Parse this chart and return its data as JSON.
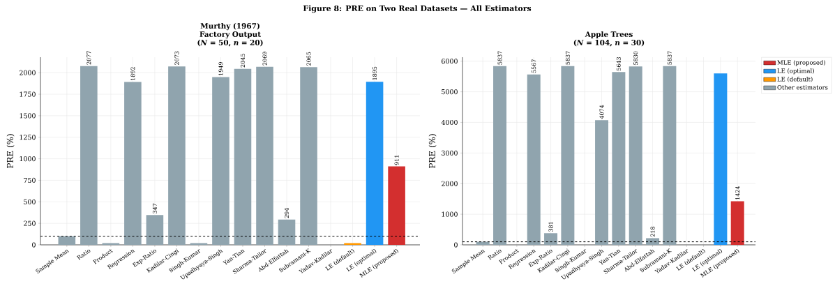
{
  "chart_data": [
    {
      "type": "bar",
      "title": "Murthy (1967) Factory Output",
      "subtitle": "(*N* = 50, *n* = 20)",
      "ylabel": "PRE (%)",
      "annotations": [
        "Figure 8: PRE on Two Real Datasets — All Estimators"
      ],
      "categories": [
        "Sample Mean",
        "Ratio",
        "Product",
        "Regression",
        "Exp-Ratio",
        "Kadilar-Cingi",
        "Singh-Kumar",
        "Upadhyaya-Singh",
        "Yan-Tian",
        "Sharma-Tailor",
        "Abd-Elfattah",
        "Subramani-K",
        "Yadav-Kadilar",
        "LE (default)",
        "LE (optimal)",
        "MLE (proposed)"
      ],
      "series": [
        {
          "color": "#d32f2f",
          "values": [
            null,
            null,
            null,
            null,
            null,
            null,
            null,
            null,
            null,
            null,
            null,
            null,
            null,
            null,
            null,
            911
          ],
          "value_labels": [
            null,
            null,
            null,
            null,
            null,
            null,
            null,
            null,
            null,
            null,
            null,
            null,
            null,
            null,
            null,
            "911"
          ]
        },
        {
          "color": "#2196f3",
          "values": [
            null,
            null,
            null,
            null,
            null,
            null,
            null,
            null,
            null,
            null,
            null,
            null,
            null,
            null,
            1895,
            null
          ],
          "value_labels": [
            null,
            null,
            null,
            null,
            null,
            null,
            null,
            null,
            null,
            null,
            null,
            null,
            null,
            null,
            "1895",
            null
          ]
        },
        {
          "color": "#ff9800",
          "values": [
            null,
            null,
            null,
            null,
            null,
            null,
            null,
            null,
            null,
            null,
            null,
            null,
            null,
            20,
            null,
            null
          ]
        },
        {
          "color": "#90a4ae",
          "values": [
            100,
            2077,
            20,
            1892,
            347,
            2073,
            20,
            1949,
            2045,
            2069,
            294,
            2065,
            null,
            null,
            null,
            null
          ],
          "value_labels": [
            null,
            "2077",
            null,
            "1892",
            "347",
            "2073",
            null,
            "1949",
            "2045",
            "2069",
            "294",
            "2065",
            null,
            null,
            null,
            null
          ]
        }
      ],
      "ylim": [
        0,
        2180
      ],
      "yticks": [
        0,
        250,
        500,
        750,
        1000,
        1250,
        1500,
        1750,
        2000
      ],
      "grid": true,
      "ref_lines": [
        {
          "axis": "y",
          "value": 100,
          "color": "#000000",
          "line_style": "dashed"
        }
      ]
    },
    {
      "type": "bar",
      "title": "Apple Trees",
      "subtitle": "(*N* = 104, *n* = 30)",
      "ylabel": "PRE (%)",
      "categories": [
        "Sample Mean",
        "Ratio",
        "Product",
        "Regression",
        "Exp-Ratio",
        "Kadilar-Cingi",
        "Singh-Kumar",
        "Upadhyaya-Singh",
        "Yan-Tian",
        "Sharma-Tailor",
        "Abd-Elfattah",
        "Subramani-K",
        "Yadav-Kadilar",
        "LE (default)",
        "LE (optimal)",
        "MLE (proposed)"
      ],
      "series": [
        {
          "name": "MLE (proposed)",
          "color": "#d32f2f",
          "values": [
            null,
            null,
            null,
            null,
            null,
            null,
            null,
            null,
            null,
            null,
            null,
            null,
            null,
            null,
            null,
            1424
          ],
          "value_labels": [
            null,
            null,
            null,
            null,
            null,
            null,
            null,
            null,
            null,
            null,
            null,
            null,
            null,
            null,
            null,
            "1424"
          ]
        },
        {
          "name": "LE (optimal)",
          "color": "#2196f3",
          "values": [
            null,
            null,
            null,
            null,
            null,
            null,
            null,
            null,
            null,
            null,
            null,
            null,
            null,
            null,
            5600,
            null
          ]
        },
        {
          "name": "LE (default)",
          "color": "#ff9800",
          "values": [
            null,
            null,
            null,
            null,
            null,
            null,
            null,
            null,
            null,
            null,
            null,
            null,
            null,
            null,
            null,
            null
          ]
        },
        {
          "name": "Other estimators",
          "color": "#90a4ae",
          "values": [
            100,
            5837,
            null,
            5567,
            381,
            5837,
            null,
            4074,
            5643,
            5830,
            218,
            5837,
            null,
            null,
            null,
            null
          ],
          "value_labels": [
            null,
            "5837",
            null,
            "5567",
            "381",
            "5837",
            null,
            "4074",
            "5643",
            "5830",
            "218",
            "5837",
            null,
            null,
            null,
            null
          ]
        }
      ],
      "ylim": [
        0,
        6130
      ],
      "yticks": [
        0,
        1000,
        2000,
        3000,
        4000,
        5000,
        6000
      ],
      "grid": true,
      "legend": "top right",
      "ref_lines": [
        {
          "axis": "y",
          "value": 100,
          "color": "#000000",
          "line_style": "dashed"
        }
      ]
    }
  ]
}
